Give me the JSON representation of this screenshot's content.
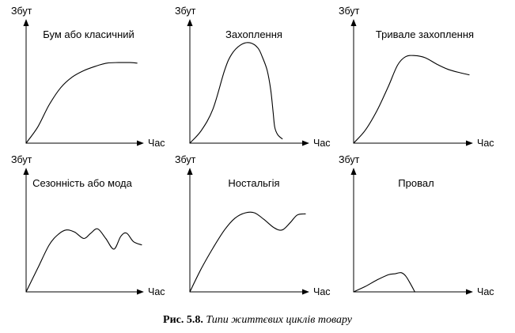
{
  "y_axis_label": "Збут",
  "x_axis_label": "Час",
  "caption": {
    "prefix": "Рис. 5.8.",
    "text": "Типи життєвих циклів товару"
  },
  "chart_data": [
    {
      "type": "line",
      "title": "Бум або класичний",
      "xlabel": "Час",
      "ylabel": "Збут",
      "xlim": [
        0,
        10
      ],
      "ylim": [
        0,
        10
      ],
      "grid": false,
      "series": [
        {
          "x": [
            0,
            1,
            2,
            3,
            4,
            5,
            6,
            7,
            8,
            9,
            9.6
          ],
          "y": [
            0,
            1.5,
            3.6,
            5.2,
            6.2,
            6.8,
            7.2,
            7.5,
            7.55,
            7.55,
            7.5
          ]
        }
      ]
    },
    {
      "type": "line",
      "title": "Захоплення",
      "xlabel": "Час",
      "ylabel": "Збут",
      "xlim": [
        0,
        10
      ],
      "ylim": [
        0,
        10
      ],
      "grid": false,
      "series": [
        {
          "x": [
            0,
            1,
            2,
            3,
            3.6,
            4.4,
            5.2,
            5.9,
            6.3,
            6.7,
            7.0,
            7.2,
            7.35,
            7.6,
            8.0
          ],
          "y": [
            0,
            1.2,
            3.2,
            6.8,
            8.3,
            9.2,
            9.4,
            8.9,
            8.0,
            6.8,
            5.0,
            3.0,
            1.5,
            0.8,
            0.4
          ]
        }
      ]
    },
    {
      "type": "line",
      "title": "Тривале захоплення",
      "xlabel": "Час",
      "ylabel": "Збут",
      "xlim": [
        0,
        10
      ],
      "ylim": [
        0,
        10
      ],
      "grid": false,
      "series": [
        {
          "x": [
            0,
            1,
            2,
            3,
            3.8,
            4.5,
            5.3,
            6.2,
            7.2,
            8.2,
            9.2,
            10.0
          ],
          "y": [
            0,
            1.2,
            3.0,
            5.3,
            7.3,
            8.1,
            8.2,
            8.0,
            7.4,
            6.9,
            6.6,
            6.4
          ]
        }
      ]
    },
    {
      "type": "line",
      "title": "Сезонність або мода",
      "xlabel": "Час",
      "ylabel": "Збут",
      "xlim": [
        0,
        10
      ],
      "ylim": [
        0,
        10
      ],
      "grid": false,
      "series": [
        {
          "x": [
            0,
            1,
            2,
            2.8,
            3.5,
            4.2,
            5.0,
            5.6,
            6.2,
            6.9,
            7.6,
            8.2,
            8.7,
            9.3,
            10.0
          ],
          "y": [
            0,
            2.2,
            4.4,
            5.4,
            5.8,
            5.6,
            5.0,
            5.5,
            5.9,
            5.0,
            4.0,
            5.2,
            5.5,
            4.7,
            4.4
          ]
        }
      ]
    },
    {
      "type": "line",
      "title": "Ностальгія",
      "xlabel": "Час",
      "ylabel": "Збут",
      "xlim": [
        0,
        10
      ],
      "ylim": [
        0,
        10
      ],
      "grid": false,
      "series": [
        {
          "x": [
            0,
            1,
            2,
            3,
            3.9,
            4.8,
            5.6,
            6.4,
            7.3,
            8.0,
            8.7,
            9.3,
            10.0
          ],
          "y": [
            0,
            2.2,
            4.1,
            5.8,
            6.9,
            7.4,
            7.4,
            6.8,
            6.0,
            5.8,
            6.5,
            7.2,
            7.3
          ]
        }
      ]
    },
    {
      "type": "line",
      "title": "Провал",
      "xlabel": "Час",
      "ylabel": "Збут",
      "xlim": [
        0,
        10
      ],
      "ylim": [
        0,
        10
      ],
      "grid": false,
      "series": [
        {
          "x": [
            0,
            1,
            2,
            3,
            3.6,
            4.1,
            4.5,
            4.9,
            5.3
          ],
          "y": [
            0,
            0.5,
            1.1,
            1.6,
            1.7,
            1.8,
            1.5,
            0.8,
            0
          ]
        }
      ]
    }
  ]
}
